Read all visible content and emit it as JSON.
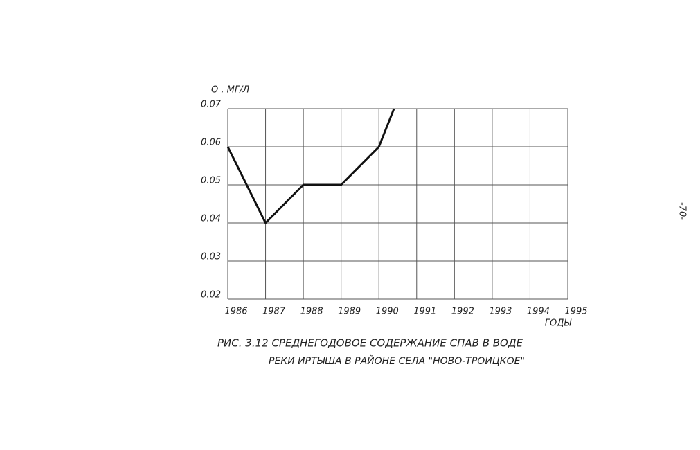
{
  "chart_data": {
    "type": "line",
    "y_label": "Q , МГ/Л",
    "x_label": "ГОДЫ",
    "caption": [
      "РИС. 3.12 СРЕДНЕГОДОВОЕ СОДЕРЖАНИЕ  СПАВ  В ВОДЕ",
      "РЕКИ ИРТЫША В РАЙОНЕ СЕЛА \"НОВО-ТРОИЦКОЕ\""
    ],
    "x": [
      1986,
      1987,
      1988,
      1989,
      1990,
      1990.4
    ],
    "values": [
      0.06,
      0.04,
      0.05,
      0.05,
      0.06,
      0.07
    ],
    "color": "#111111",
    "xlim": [
      1986,
      1995
    ],
    "xticks": [
      1986,
      1987,
      1988,
      1989,
      1990,
      1991,
      1992,
      1993,
      1994,
      1995
    ],
    "ylim": [
      0.02,
      0.07
    ],
    "yticks": [
      0.02,
      0.03,
      0.04,
      0.05,
      0.06,
      0.07
    ],
    "grid": true
  },
  "page_number": "-70-"
}
